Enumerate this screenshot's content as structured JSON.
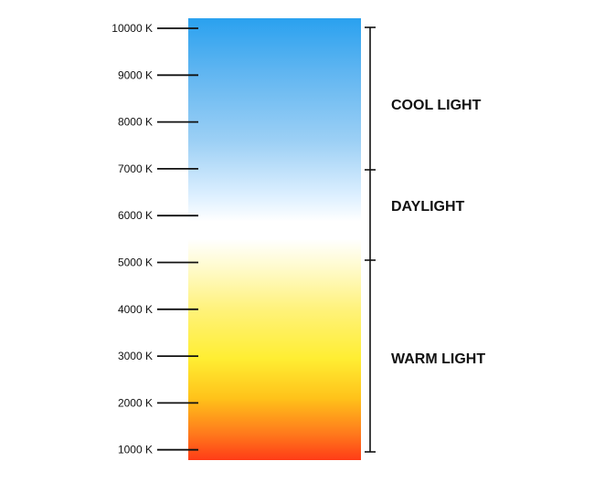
{
  "scale": {
    "ticks": [
      "10000 K",
      "9000 K",
      "8000 K",
      "7000 K",
      "6000 K",
      "5000 K",
      "4000 K",
      "3000 K",
      "2000 K",
      "1000 K"
    ]
  },
  "ranges": [
    {
      "label": "COOL LIGHT"
    },
    {
      "label": "DAYLIGHT"
    },
    {
      "label": "WARM LIGHT"
    }
  ]
}
